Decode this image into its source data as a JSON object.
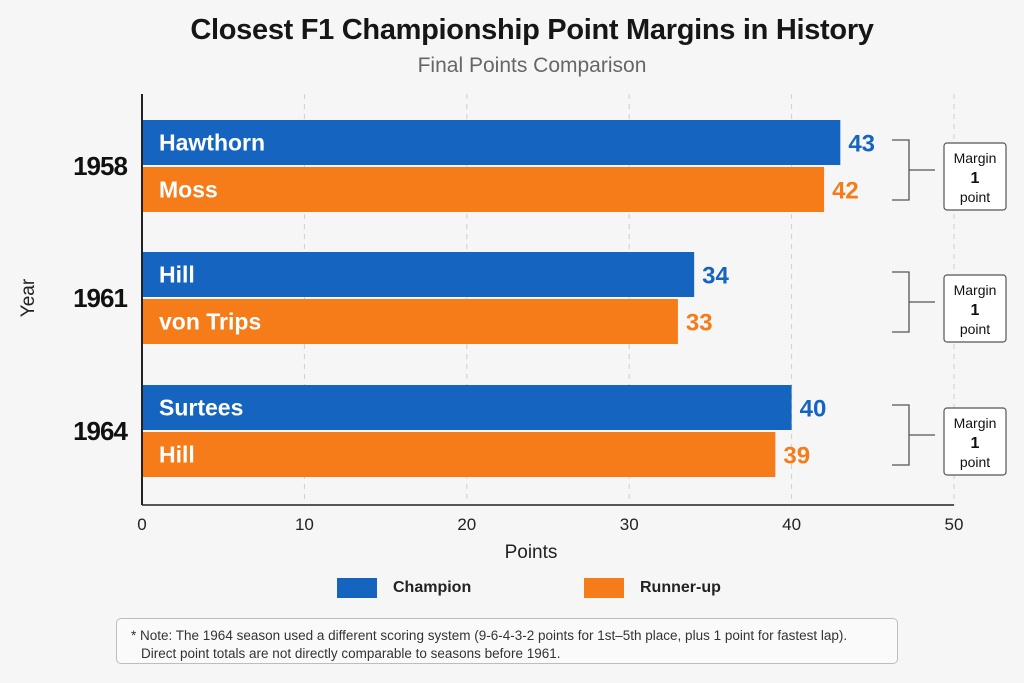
{
  "chart_data": {
    "type": "bar",
    "orientation": "horizontal",
    "title": "Closest F1 Championship Point Margins in History",
    "subtitle": "Final Points Comparison",
    "xlabel": "Points",
    "ylabel": "Year",
    "xlim": [
      0,
      50
    ],
    "xticks": [
      0,
      10,
      20,
      30,
      40,
      50
    ],
    "grid": "vertical-dashed",
    "categories": [
      "1958",
      "1961",
      "1964"
    ],
    "series": [
      {
        "name": "Champion",
        "color": "#1565c0",
        "drivers": [
          "Hawthorn",
          "Hill",
          "Surtees"
        ],
        "values": [
          43,
          34,
          40
        ]
      },
      {
        "name": "Runner-up",
        "color": "#f57c18",
        "drivers": [
          "Moss",
          "von Trips",
          "Hill"
        ],
        "values": [
          42,
          33,
          39
        ]
      }
    ],
    "margins": [
      {
        "label": "Margin",
        "value": "1",
        "unit": "point"
      },
      {
        "label": "Margin",
        "value": "1",
        "unit": "point"
      },
      {
        "label": "Margin",
        "value": "1",
        "unit": "point"
      }
    ],
    "legend_placement": "bottom"
  },
  "note": {
    "line1": "* Note: The 1964 season used a different scoring system (9-6-4-3-2 points for 1st–5th place, plus 1 point for fastest lap).",
    "line2": "Direct point totals are not directly comparable to seasons before 1961."
  }
}
